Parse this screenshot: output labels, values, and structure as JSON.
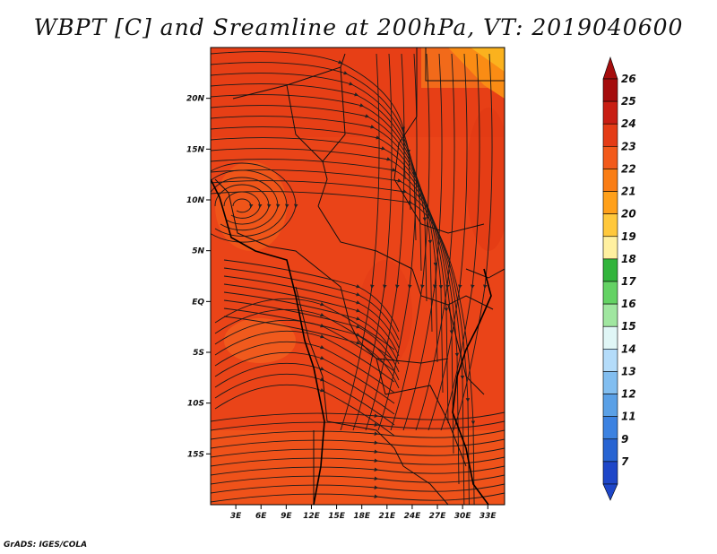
{
  "title": "WBPT [C] and Sreamline at 200hPa, VT: 2019040600",
  "footer": "GrADS: IGES/COLA",
  "map": {
    "lon_range": [
      0,
      35
    ],
    "lat_range": [
      -20,
      25
    ],
    "lon_ticks": [
      "3E",
      "6E",
      "9E",
      "12E",
      "15E",
      "18E",
      "21E",
      "24E",
      "27E",
      "30E",
      "33E"
    ],
    "lon_tick_values": [
      3,
      6,
      9,
      12,
      15,
      18,
      21,
      24,
      27,
      30,
      33
    ],
    "lat_ticks": [
      "20N",
      "15N",
      "10N",
      "5N",
      "EQ",
      "5S",
      "10S",
      "15S"
    ],
    "lat_tick_values": [
      20,
      15,
      10,
      5,
      0,
      -5,
      -10,
      -15
    ],
    "field_dominant_colors": [
      "#e83c17",
      "#f05a1a",
      "#fa8c14"
    ]
  },
  "colorbar": {
    "labels": [
      "26",
      "25",
      "24",
      "23",
      "22",
      "21",
      "20",
      "19",
      "18",
      "17",
      "16",
      "15",
      "14",
      "13",
      "12",
      "11",
      "9",
      "7"
    ],
    "colors": [
      "#a50d0d",
      "#c81e13",
      "#e43c16",
      "#f25a1b",
      "#fa7d14",
      "#ffa01a",
      "#ffc83c",
      "#fff0a0",
      "#32b43c",
      "#64d264",
      "#a0e6a0",
      "#e0f6f6",
      "#b4dcfa",
      "#82bef0",
      "#5aa0e6",
      "#3c82e1",
      "#2864d2",
      "#1e46c8"
    ]
  }
}
